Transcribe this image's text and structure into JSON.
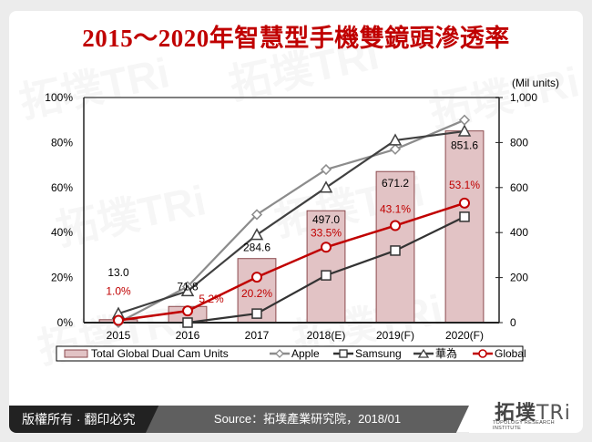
{
  "title": "2015～2020年智慧型手機雙鏡頭滲透率",
  "footer": {
    "copyright": "版權所有 · 翻印必究",
    "source": "Source：拓墣產業研究院，2018/01",
    "logo_text": "拓墣",
    "logo_tri": "TRi",
    "logo_sub": "TOPOLOGY RESEARCH INSTITUTE"
  },
  "watermark": "拓墣TRi",
  "chart_data": {
    "type": "bar+line",
    "title": "2015～2020年智慧型手機雙鏡頭滲透率",
    "categories": [
      "2015",
      "2016",
      "2017",
      "2018(E)",
      "2019(F)",
      "2020(F)"
    ],
    "left_axis": {
      "label": "",
      "ticks": [
        "0%",
        "20%",
        "40%",
        "60%",
        "80%",
        "100%"
      ],
      "range": [
        0,
        100
      ]
    },
    "right_axis": {
      "label": "(Mil units)",
      "ticks": [
        "0",
        "200",
        "400",
        "600",
        "800",
        "1,000"
      ],
      "range": [
        0,
        1000
      ]
    },
    "bars": {
      "name": "Total Global Dual Cam Units",
      "axis": "right",
      "values": [
        13.0,
        71.8,
        284.6,
        497.0,
        671.2,
        851.6
      ],
      "labels": [
        "13.0",
        "71.8",
        "284.6",
        "497.0",
        "671.2",
        "851.6"
      ],
      "color": "#e2c3c5"
    },
    "series": [
      {
        "name": "Apple",
        "axis": "left",
        "marker": "diamond",
        "color": "#8c8c8c",
        "values": [
          0,
          16,
          48,
          68,
          77,
          90
        ]
      },
      {
        "name": "Samsung",
        "axis": "left",
        "marker": "square",
        "color": "#333333",
        "values": [
          null,
          0,
          4,
          21,
          32,
          47
        ]
      },
      {
        "name": "華為",
        "axis": "left",
        "marker": "triangle",
        "color": "#404040",
        "values": [
          4,
          14,
          39,
          60,
          81,
          85
        ]
      },
      {
        "name": "Global",
        "axis": "left",
        "marker": "circle",
        "color": "#c00000",
        "values": [
          1.0,
          5.2,
          20.2,
          33.5,
          43.1,
          53.1
        ],
        "labels": [
          "1.0%",
          "5.2%",
          "20.2%",
          "33.5%",
          "43.1%",
          "53.1%"
        ]
      }
    ],
    "legend": [
      "Total Global Dual Cam Units",
      "Apple",
      "Samsung",
      "華為",
      "Global"
    ],
    "legend_position": "bottom",
    "grid": false
  }
}
